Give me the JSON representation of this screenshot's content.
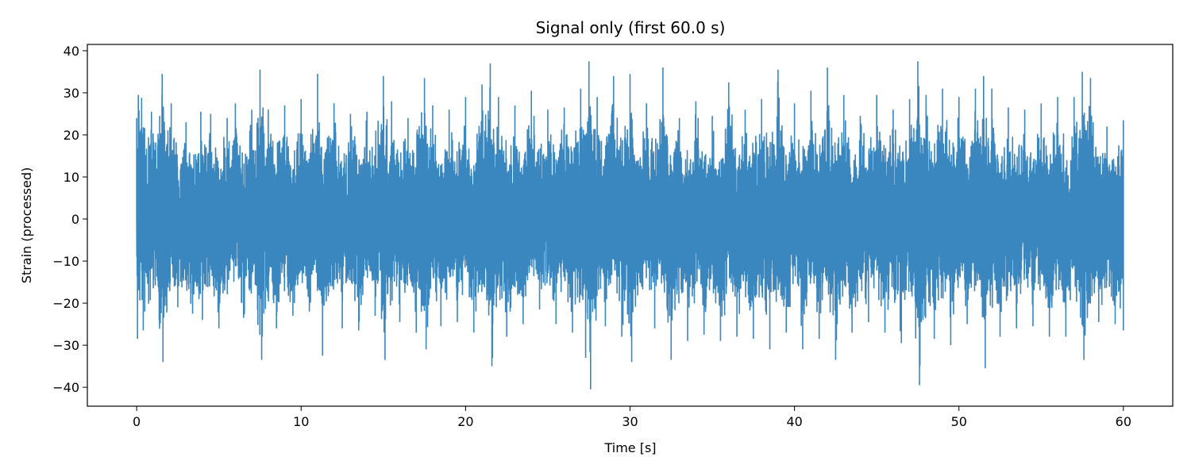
{
  "chart_data": {
    "type": "line",
    "title": "Signal only (first 60.0 s)",
    "xlabel": "Time [s]",
    "ylabel": "Strain (processed)",
    "xlim": [
      -3.0,
      63.0
    ],
    "ylim": [
      -44.5,
      41.5
    ],
    "xticks": [
      0,
      10,
      20,
      30,
      40,
      50,
      60
    ],
    "yticks": [
      -40,
      -30,
      -20,
      -10,
      0,
      10,
      20,
      30,
      40
    ],
    "x_start": 0,
    "x_end": 60,
    "grid": false,
    "series": [
      {
        "color": "#3a86be",
        "peak_points": [
          [
            0.0,
            24.0
          ],
          [
            0.05,
            -28.5
          ],
          [
            0.1,
            29.5
          ],
          [
            0.3,
            28.8
          ],
          [
            0.4,
            -26.5
          ],
          [
            0.9,
            25.5
          ],
          [
            1.4,
            24.5
          ],
          [
            1.55,
            34.5
          ],
          [
            1.6,
            -34.0
          ],
          [
            2.1,
            27.5
          ],
          [
            2.5,
            -21.0
          ],
          [
            3.0,
            23.0
          ],
          [
            3.4,
            -22.5
          ],
          [
            3.9,
            25.5
          ],
          [
            4.0,
            -24.0
          ],
          [
            4.5,
            25.0
          ],
          [
            5.0,
            -26.0
          ],
          [
            5.5,
            24.0
          ],
          [
            6.0,
            27.5
          ],
          [
            6.5,
            -23.5
          ],
          [
            7.0,
            26.0
          ],
          [
            7.5,
            35.5
          ],
          [
            7.6,
            -33.5
          ],
          [
            8.0,
            26.0
          ],
          [
            8.5,
            -26.0
          ],
          [
            9.0,
            27.0
          ],
          [
            9.5,
            -23.0
          ],
          [
            10.0,
            28.5
          ],
          [
            10.5,
            -22.0
          ],
          [
            11.0,
            34.5
          ],
          [
            11.3,
            -32.5
          ],
          [
            12.0,
            27.5
          ],
          [
            12.5,
            -26.0
          ],
          [
            13.0,
            25.0
          ],
          [
            13.5,
            -26.5
          ],
          [
            14.0,
            25.5
          ],
          [
            14.5,
            -23.0
          ],
          [
            15.0,
            34.0
          ],
          [
            15.1,
            -33.5
          ],
          [
            15.5,
            28.0
          ],
          [
            16.0,
            -24.5
          ],
          [
            16.5,
            24.0
          ],
          [
            17.0,
            -27.0
          ],
          [
            17.5,
            33.5
          ],
          [
            17.6,
            -31.0
          ],
          [
            18.0,
            27.0
          ],
          [
            18.5,
            -25.5
          ],
          [
            19.0,
            26.0
          ],
          [
            19.5,
            -24.5
          ],
          [
            20.0,
            29.0
          ],
          [
            20.5,
            -27.0
          ],
          [
            21.0,
            32.0
          ],
          [
            21.5,
            37.0
          ],
          [
            21.6,
            -35.0
          ],
          [
            22.0,
            29.0
          ],
          [
            22.5,
            -28.0
          ],
          [
            23.0,
            27.0
          ],
          [
            23.5,
            -25.0
          ],
          [
            24.0,
            30.5
          ],
          [
            24.5,
            -21.5
          ],
          [
            25.0,
            26.0
          ],
          [
            25.5,
            -25.0
          ],
          [
            26.0,
            26.5
          ],
          [
            26.5,
            -27.0
          ],
          [
            27.0,
            31.0
          ],
          [
            27.3,
            -33.0
          ],
          [
            27.5,
            37.5
          ],
          [
            27.6,
            -40.5
          ],
          [
            28.0,
            29.0
          ],
          [
            28.5,
            -25.5
          ],
          [
            29.0,
            34.0
          ],
          [
            29.5,
            -28.0
          ],
          [
            30.0,
            34.5
          ],
          [
            30.1,
            -34.0
          ],
          [
            31.0,
            27.5
          ],
          [
            31.5,
            -26.0
          ],
          [
            32.0,
            36.0
          ],
          [
            32.5,
            -33.5
          ],
          [
            33.0,
            24.0
          ],
          [
            33.5,
            -29.0
          ],
          [
            34.0,
            28.0
          ],
          [
            34.5,
            -27.5
          ],
          [
            35.0,
            24.5
          ],
          [
            35.5,
            -29.0
          ],
          [
            36.0,
            32.5
          ],
          [
            36.5,
            -28.0
          ],
          [
            37.0,
            26.0
          ],
          [
            37.5,
            -28.5
          ],
          [
            38.0,
            28.5
          ],
          [
            38.5,
            -31.0
          ],
          [
            39.0,
            35.5
          ],
          [
            39.5,
            -27.0
          ],
          [
            40.0,
            27.5
          ],
          [
            40.5,
            -31.0
          ],
          [
            41.0,
            30.5
          ],
          [
            41.5,
            -28.5
          ],
          [
            42.0,
            36.0
          ],
          [
            42.5,
            -33.5
          ],
          [
            43.0,
            29.5
          ],
          [
            43.5,
            -27.0
          ],
          [
            44.0,
            24.5
          ],
          [
            44.5,
            -24.5
          ],
          [
            45.0,
            29.5
          ],
          [
            45.5,
            -27.0
          ],
          [
            46.0,
            26.0
          ],
          [
            46.5,
            -29.5
          ],
          [
            47.0,
            28.5
          ],
          [
            47.5,
            37.5
          ],
          [
            47.6,
            -39.5
          ],
          [
            48.0,
            29.5
          ],
          [
            48.5,
            -28.5
          ],
          [
            49.0,
            31.0
          ],
          [
            49.5,
            -30.0
          ],
          [
            50.0,
            29.0
          ],
          [
            50.5,
            -25.0
          ],
          [
            51.0,
            31.0
          ],
          [
            51.5,
            34.0
          ],
          [
            51.6,
            -35.5
          ],
          [
            52.0,
            31.0
          ],
          [
            52.5,
            -28.0
          ],
          [
            53.0,
            26.5
          ],
          [
            53.5,
            -26.0
          ],
          [
            54.0,
            26.0
          ],
          [
            54.5,
            -25.5
          ],
          [
            55.0,
            27.5
          ],
          [
            55.5,
            -28.0
          ],
          [
            56.0,
            29.0
          ],
          [
            56.5,
            -28.0
          ],
          [
            57.0,
            29.0
          ],
          [
            57.5,
            35.0
          ],
          [
            57.6,
            -33.5
          ],
          [
            58.0,
            33.5
          ],
          [
            58.5,
            -24.5
          ],
          [
            59.0,
            22.0
          ],
          [
            59.5,
            -25.0
          ],
          [
            60.0,
            23.5
          ],
          [
            60.0,
            -26.5
          ]
        ]
      }
    ]
  }
}
